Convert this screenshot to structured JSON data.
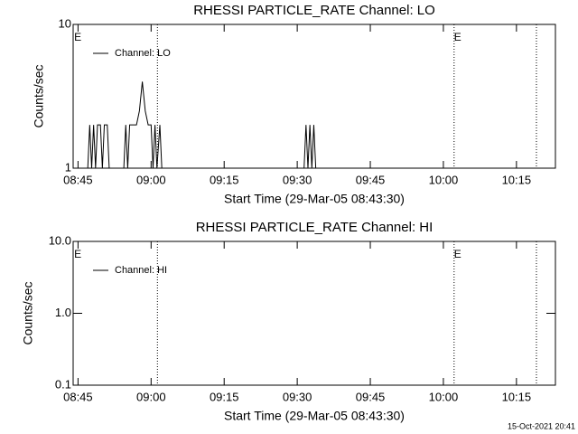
{
  "chart_data": [
    {
      "type": "line",
      "title": "RHESSI PARTICLE_RATE Channel: LO",
      "xlabel": "Start Time (29-Mar-05 08:43:30)",
      "ylabel": "Counts/sec",
      "xlim": [
        524,
        623
      ],
      "xticks": [
        {
          "value": 525,
          "label": "08:45"
        },
        {
          "value": 540,
          "label": "09:00"
        },
        {
          "value": 555,
          "label": "09:15"
        },
        {
          "value": 570,
          "label": "09:30"
        },
        {
          "value": 585,
          "label": "09:45"
        },
        {
          "value": 600,
          "label": "10:00"
        },
        {
          "value": 615,
          "label": "10:15"
        }
      ],
      "ylim": [
        1,
        10
      ],
      "yticks": [
        1,
        10
      ],
      "log_y": true,
      "legend": "upper left",
      "series": [
        {
          "name": "Channel: LO",
          "color": "#000000",
          "x": [
            527.0,
            527.4,
            527.8,
            528.2,
            528.6,
            529.0,
            529.6,
            530.0,
            530.4,
            531.0,
            531.4,
            534.4,
            534.8,
            535.2,
            535.6,
            536.2,
            537.0,
            537.6,
            538.2,
            538.8,
            539.4,
            540.0,
            540.4,
            540.8,
            541.2,
            541.8,
            542.2,
            571.4,
            571.8,
            572.2,
            572.6,
            573.0,
            573.4,
            573.8
          ],
          "values": [
            1,
            2,
            1,
            2,
            1,
            2,
            2,
            1,
            2,
            2,
            1,
            1,
            2,
            1,
            2,
            2,
            2,
            2.5,
            4,
            2.5,
            2,
            2,
            1,
            2,
            1,
            2,
            1,
            1,
            2,
            1,
            2,
            1,
            2,
            1
          ]
        }
      ],
      "vlines": [
        541.3,
        602.2,
        619.1
      ],
      "annotations": [
        {
          "text": "E",
          "x": 524.2
        },
        {
          "text": "E",
          "x": 602.2
        }
      ]
    },
    {
      "type": "line",
      "title": "RHESSI PARTICLE_RATE Channel: HI",
      "xlabel": "Start Time (29-Mar-05 08:43:30)",
      "ylabel": "Counts/sec",
      "xlim": [
        524,
        623
      ],
      "xticks": [
        {
          "value": 525,
          "label": "08:45"
        },
        {
          "value": 540,
          "label": "09:00"
        },
        {
          "value": 555,
          "label": "09:15"
        },
        {
          "value": 570,
          "label": "09:30"
        },
        {
          "value": 585,
          "label": "09:45"
        },
        {
          "value": 600,
          "label": "10:00"
        },
        {
          "value": 615,
          "label": "10:15"
        }
      ],
      "ylim": [
        0.1,
        10
      ],
      "yticks": [
        {
          "value": 0.1,
          "label": "0.1"
        },
        {
          "value": 1,
          "label": "1.0"
        },
        {
          "value": 10,
          "label": "10.0"
        }
      ],
      "log_y": true,
      "legend": "upper left",
      "series": [
        {
          "name": "Channel: HI",
          "color": "#000000",
          "x": [],
          "values": []
        }
      ],
      "vlines": [
        541.3,
        602.2,
        619.1
      ],
      "annotations": [
        {
          "text": "E",
          "x": 524.2
        },
        {
          "text": "E",
          "x": 602.2
        }
      ]
    }
  ],
  "footer": "15-Oct-2021 20:41"
}
